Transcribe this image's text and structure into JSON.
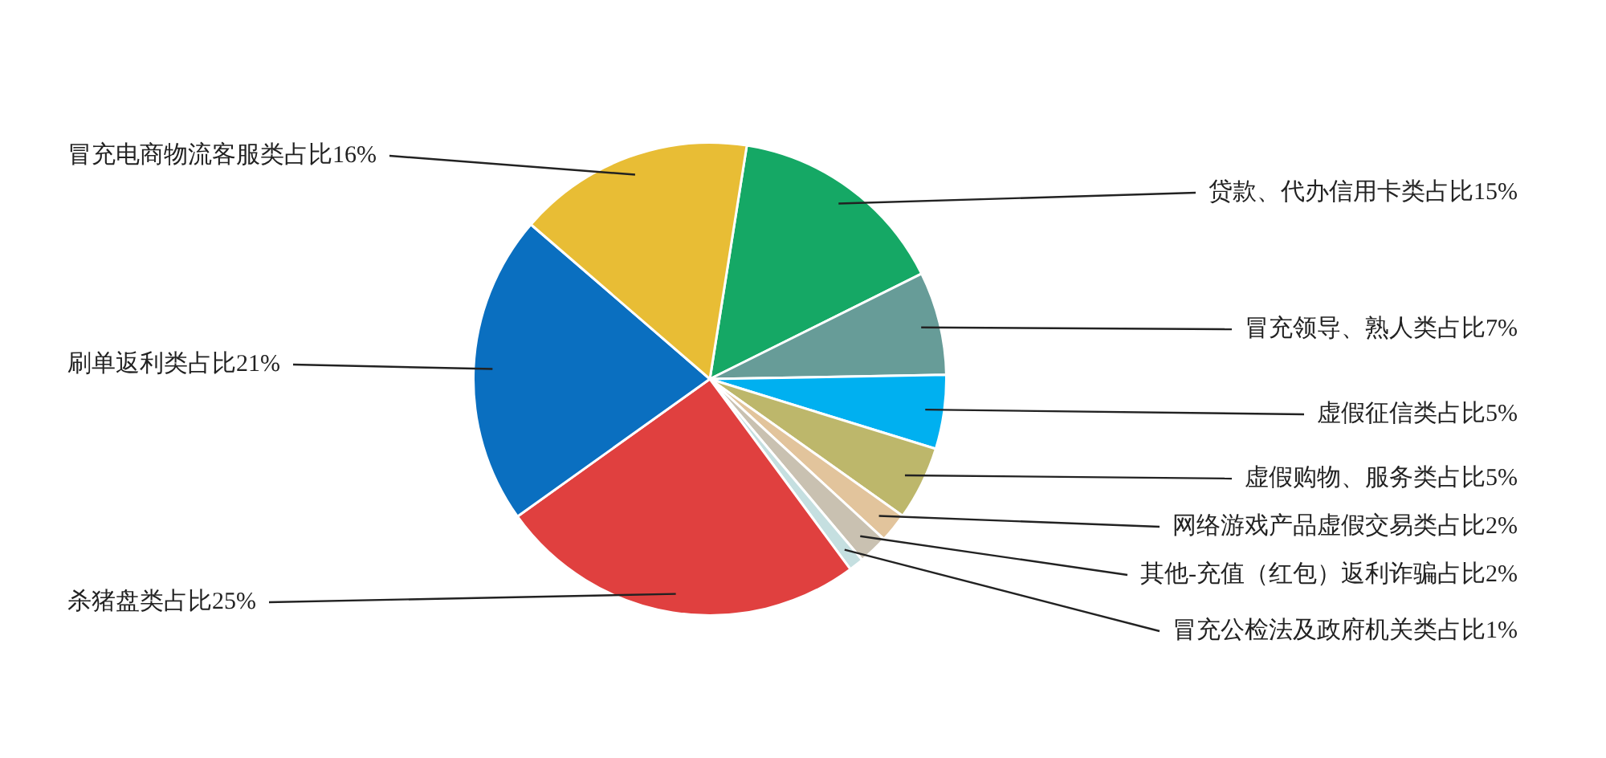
{
  "chart_data": {
    "type": "pie",
    "categories": [
      "贷款、代办信用卡类占比15%",
      "冒充领导、熟人类占比7%",
      "虚假征信类占比5%",
      "虚假购物、服务类占比5%",
      "网络游戏产品虚假交易类占比2%",
      "其他-充值（红包）返利诈骗占比2%",
      "冒充公检法及政府机关类占比1%",
      "杀猪盘类占比25%",
      "刷单返利类占比21%",
      "冒充电商物流客服类占比16%"
    ],
    "values": [
      15,
      7,
      5,
      5,
      2,
      2,
      1,
      25,
      21,
      16
    ],
    "colors": [
      "#15a865",
      "#679c98",
      "#00b0f0",
      "#bdb76b",
      "#e2c49c",
      "#c9c1b1",
      "#c5dfe0",
      "#e0403f",
      "#0a6fc0",
      "#e8bd35"
    ],
    "legend": false
  }
}
